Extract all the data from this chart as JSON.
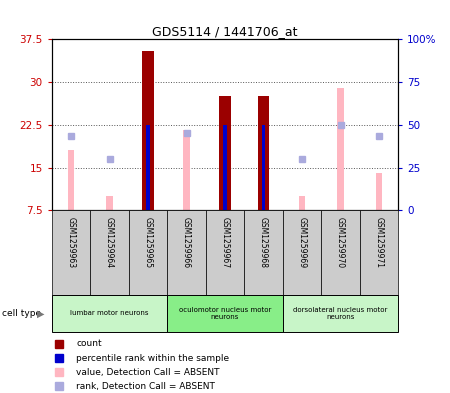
{
  "title": "GDS5114 / 1441706_at",
  "samples": [
    "GSM1259963",
    "GSM1259964",
    "GSM1259965",
    "GSM1259966",
    "GSM1259967",
    "GSM1259968",
    "GSM1259969",
    "GSM1259970",
    "GSM1259971"
  ],
  "count_values": [
    null,
    null,
    35.5,
    null,
    27.5,
    27.5,
    null,
    null,
    null
  ],
  "count_absent_values": [
    18.0,
    10.0,
    null,
    21.5,
    null,
    null,
    10.0,
    29.0,
    14.0
  ],
  "rank_values_left": [
    null,
    null,
    22.5,
    null,
    22.5,
    22.5,
    null,
    null,
    null
  ],
  "rank_absent_left": [
    20.5,
    16.5,
    null,
    21.0,
    null,
    null,
    16.5,
    22.5,
    20.5
  ],
  "ylim_left": [
    7.5,
    37.5
  ],
  "ylim_right": [
    0,
    100
  ],
  "yticks_left": [
    7.5,
    15.0,
    22.5,
    30.0,
    37.5
  ],
  "yticks_left_labels": [
    "7.5",
    "15",
    "22.5",
    "30",
    "37.5"
  ],
  "yticks_right": [
    0,
    25,
    50,
    75,
    100
  ],
  "yticks_right_labels": [
    "0",
    "25",
    "50",
    "75",
    "100%"
  ],
  "cell_groups": [
    {
      "label": "lumbar motor neurons",
      "start": 0,
      "end": 3,
      "color": "#c8f5c8"
    },
    {
      "label": "oculomotor nucleus motor\nneurons",
      "start": 3,
      "end": 6,
      "color": "#88ee88"
    },
    {
      "label": "dorsolateral nucleus motor\nneurons",
      "start": 6,
      "end": 9,
      "color": "#c8f5c8"
    }
  ],
  "color_count": "#9B0000",
  "color_count_absent": "#FFB6C1",
  "color_rank": "#0000CC",
  "color_rank_absent": "#AAAADD",
  "grid_color": "#555555",
  "tick_color_left": "#CC0000",
  "tick_color_right": "#0000CC",
  "bg_color": "#FFFFFF"
}
